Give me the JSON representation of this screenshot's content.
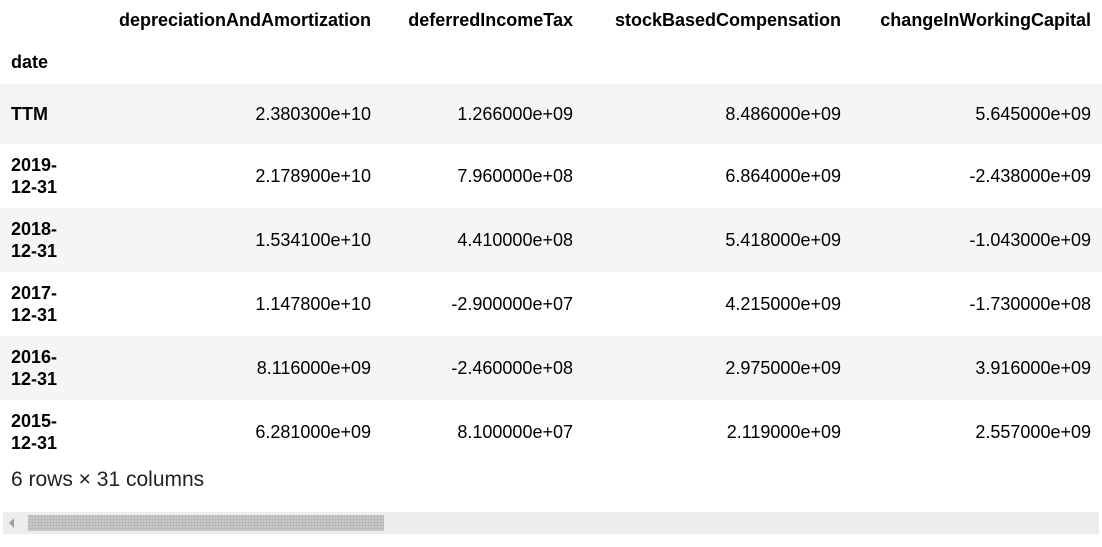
{
  "table": {
    "columns": [
      "depreciationAndAmortization",
      "deferredIncomeTax",
      "stockBasedCompensation",
      "changeInWorkingCapital"
    ],
    "index_name": "date",
    "rows": [
      {
        "index": "TTM",
        "values": [
          "2.380300e+10",
          "1.266000e+09",
          "8.486000e+09",
          "5.645000e+09"
        ]
      },
      {
        "index": "2019-\n12-31",
        "index_parts": [
          "2019-",
          "12-31"
        ],
        "values": [
          "2.178900e+10",
          "7.960000e+08",
          "6.864000e+09",
          "-2.438000e+09"
        ]
      },
      {
        "index": "2018-\n12-31",
        "index_parts": [
          "2018-",
          "12-31"
        ],
        "values": [
          "1.534100e+10",
          "4.410000e+08",
          "5.418000e+09",
          "-1.043000e+09"
        ]
      },
      {
        "index": "2017-\n12-31",
        "index_parts": [
          "2017-",
          "12-31"
        ],
        "values": [
          "1.147800e+10",
          "-2.900000e+07",
          "4.215000e+09",
          "-1.730000e+08"
        ]
      },
      {
        "index": "2016-\n12-31",
        "index_parts": [
          "2016-",
          "12-31"
        ],
        "values": [
          "8.116000e+09",
          "-2.460000e+08",
          "2.975000e+09",
          "3.916000e+09"
        ]
      },
      {
        "index": "2015-\n12-31",
        "index_parts": [
          "2015-",
          "12-31"
        ],
        "values": [
          "6.281000e+09",
          "8.100000e+07",
          "2.119000e+09",
          "2.557000e+09"
        ]
      }
    ]
  },
  "footer": {
    "shape_text": "6 rows × 31 columns"
  },
  "scrollbar": {
    "left_arrow_icon": "chevron-left-icon",
    "position_fraction": 0.0,
    "visible_fraction": 0.33
  },
  "colors": {
    "row_stripe": "#f5f5f5",
    "scroll_track": "#ececec",
    "scroll_thumb": "#c8c8c8"
  }
}
